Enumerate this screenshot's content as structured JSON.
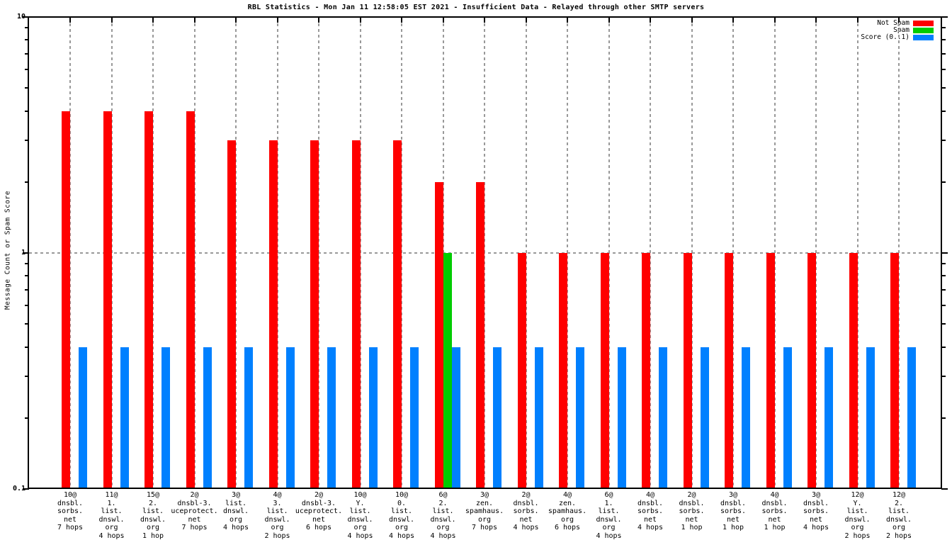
{
  "title": "RBL Statistics - Mon Jan 11 12:58:05 EST 2021 - Insufficient Data - Relayed through other SMTP servers",
  "y_axis": {
    "label": "Message Count or Spam Score",
    "major_ticks": [
      {
        "value": 10,
        "label": "10"
      },
      {
        "value": 1,
        "label": "1"
      },
      {
        "value": 0.1,
        "label": "0.1"
      }
    ]
  },
  "legend": {
    "items": [
      {
        "label": "Not Spam",
        "color": "#ff0000"
      },
      {
        "label": "Spam",
        "color": "#00cc00"
      },
      {
        "label": "Score (0..1)",
        "color": "#0080ff"
      }
    ]
  },
  "chart_data": {
    "type": "bar",
    "yscale": "log",
    "ylim": [
      0.1,
      10
    ],
    "ylabel": "Message Count or Spam Score",
    "title": "RBL Statistics - Mon Jan 11 12:58:05 EST 2021 - Insufficient Data - Relayed through other SMTP servers",
    "legend_position": "top-right",
    "grid": {
      "vertical_dashed_per_category": true,
      "horizontal_dashed_at": [
        1
      ]
    },
    "categories": [
      "10@\ndnsbl.\nsorbs.\nnet\n7 hops",
      "11@\n1.\nlist.\ndnswl.\norg\n4 hops",
      "15@\n2.\nlist.\ndnswl.\norg\n1 hop",
      "2@\ndnsbl-3.\nuceprotect.\nnet\n7 hops",
      "3@\nlist.\ndnswl.\norg\n4 hops",
      "4@\n3.\nlist.\ndnswl.\norg\n2 hops",
      "2@\ndnsbl-3.\nuceprotect.\nnet\n6 hops",
      "10@\nY.\nlist.\ndnswl.\norg\n4 hops",
      "10@\n0.\nlist.\ndnswl.\norg\n4 hops",
      "6@\n2.\nlist.\ndnswl.\norg\n4 hops",
      "3@\nzen.\nspamhaus.\norg\n7 hops",
      "2@\ndnsbl.\nsorbs.\nnet\n4 hops",
      "4@\nzen.\nspamhaus.\norg\n6 hops",
      "6@\n1.\nlist.\ndnswl.\norg\n4 hops",
      "4@\ndnsbl.\nsorbs.\nnet\n4 hops",
      "2@\ndnsbl.\nsorbs.\nnet\n1 hop",
      "3@\ndnsbl.\nsorbs.\nnet\n1 hop",
      "4@\ndnsbl.\nsorbs.\nnet\n1 hop",
      "3@\ndnsbl.\nsorbs.\nnet\n4 hops",
      "12@\nY.\nlist.\ndnswl.\norg\n2 hops",
      "12@\n2.\nlist.\ndnswl.\norg\n2 hops"
    ],
    "series": [
      {
        "name": "Not Spam",
        "color": "#ff0000",
        "values": [
          4,
          4,
          4,
          4,
          3,
          3,
          3,
          3,
          3,
          2,
          2,
          1,
          1,
          1,
          1,
          1,
          1,
          1,
          1,
          1,
          1
        ]
      },
      {
        "name": "Spam",
        "color": "#00cc00",
        "values": [
          0,
          0,
          0,
          0,
          0,
          0,
          0,
          0,
          0,
          1,
          0,
          0,
          0,
          0,
          0,
          0,
          0,
          0,
          0,
          0,
          0
        ]
      },
      {
        "name": "Score (0..1)",
        "color": "#0080ff",
        "values": [
          0.4,
          0.4,
          0.4,
          0.4,
          0.4,
          0.4,
          0.4,
          0.4,
          0.4,
          0.4,
          0.4,
          0.4,
          0.4,
          0.4,
          0.4,
          0.4,
          0.4,
          0.4,
          0.4,
          0.4,
          0.4
        ]
      }
    ]
  }
}
